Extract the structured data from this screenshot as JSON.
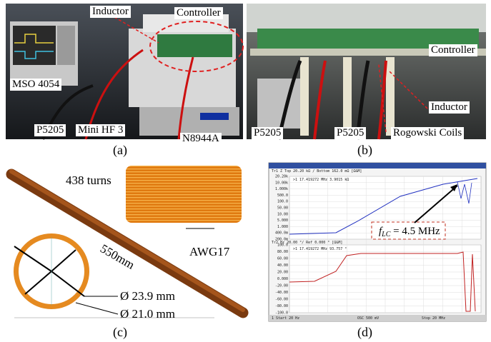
{
  "panel_a": {
    "inductor": "Inductor",
    "controller": "Controller",
    "scope": "MSO 4054",
    "probe": "P5205",
    "probe_hf": "Mini HF 3",
    "supply": "N8944A",
    "caption": "(a)"
  },
  "panel_b": {
    "controller": "Controller",
    "inductor": "Inductor",
    "probe_1": "P5205",
    "probe_2": "P5205",
    "coils": "Rogowski Coils",
    "caption": "(b)"
  },
  "panel_c": {
    "turns": "438 turns",
    "length": "550mm",
    "wire": "AWG17",
    "outer_diameter": "Ø 23.9 mm",
    "inner_diameter": "Ø 21.0 mm",
    "caption": "(c)"
  },
  "panel_d": {
    "resonance": {
      "symbol": "f",
      "subscript": "LC",
      "text": " = 4.5 MHz"
    },
    "screen": {
      "trace1_header": "Tr1 Z  Top 20.20 kΩ / Bottom 162.0 mΩ [Ω&M]",
      "marker1": ">1  17.419272 MHz  3.9015 kΩ",
      "trace2_header": "Tr2 θz  20.00 °/ Ref 0.000 ° [Ω&M]",
      "marker2": ">1  17.419272 MHz  93.757 °",
      "start": "1  Start 20 Hz",
      "osc": "OSC 500 mV",
      "stop": "Stop 20 MHz",
      "top_ticks": [
        "20.20k",
        "10.00k",
        "1.000k",
        "500.0",
        "100.0",
        "50.00",
        "10.00",
        "5.000",
        "1.000",
        "400.0m",
        "200.0m"
      ],
      "bottom_ticks": [
        "100.0",
        "80.00",
        "60.00",
        "40.00",
        "20.00",
        "0.000",
        "-20.00",
        "-40.00",
        "-60.00",
        "-80.00",
        "-100.0"
      ]
    },
    "caption": "(d)"
  }
}
